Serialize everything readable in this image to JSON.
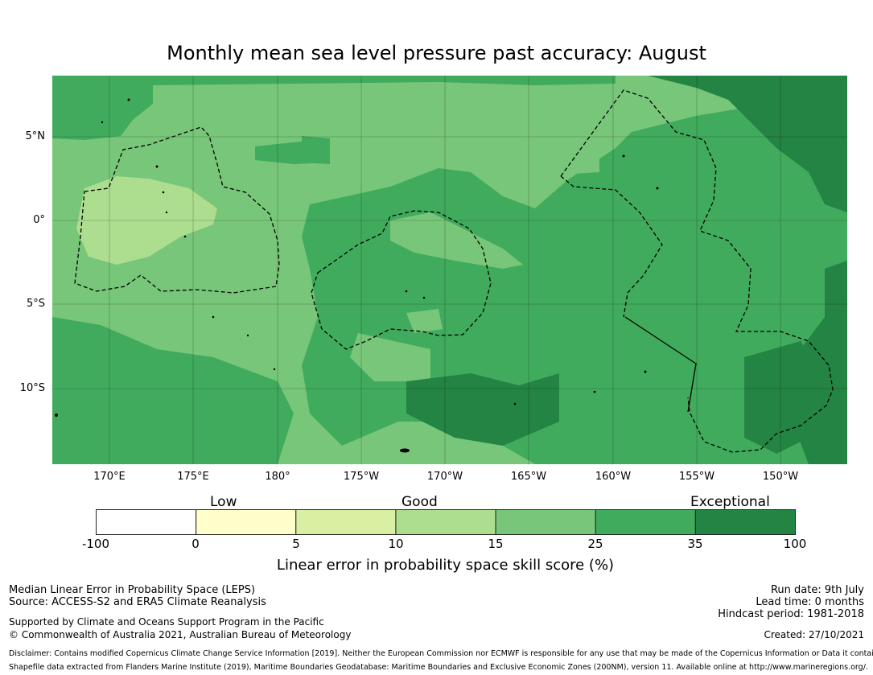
{
  "title": "Monthly mean sea level pressure past accuracy: August",
  "map": {
    "lat_labels": [
      "5°N",
      "0°",
      "5°S",
      "10°S"
    ],
    "lon_labels": [
      "170°E",
      "175°E",
      "180°",
      "175°W",
      "170°W",
      "165°W",
      "160°W",
      "155°W",
      "150°W"
    ]
  },
  "colorbar": {
    "category_labels": [
      "Low",
      "Good",
      "Exceptional"
    ],
    "tick_labels": [
      "-100",
      "0",
      "5",
      "10",
      "15",
      "25",
      "35",
      "100"
    ],
    "bin_colors": [
      "#ffffff",
      "#ffffcc",
      "#d9f0a3",
      "#addd8e",
      "#78c679",
      "#41ab5d",
      "#238443"
    ],
    "label": "Linear error in probability space skill score (%)"
  },
  "footer": {
    "line1": "Median Linear Error in Probability Space (LEPS)",
    "line2": "Source: ACCESS-S2 and ERA5 Climate Reanalysis",
    "line3": "Supported by Climate and Oceans Support Program in the Pacific",
    "line4": "© Commonwealth of Australia 2021, Australian Bureau of Meteorology",
    "run_date": "Run date: 9th July",
    "lead_time": "Lead time: 0 months",
    "hindcast": "Hindcast period: 1981-2018",
    "created": "Created: 27/10/2021",
    "disclaimer": "Disclaimer: Contains modified Copernicus Climate Change Service Information [2019]. Neither the European Commission nor ECMWF is responsible for any use that may be made of the Copernicus Information or Data it contains.",
    "shapefile": "Shapefile data extracted from Flanders Marine Institute (2019), Maritime Boundaries Geodatabase: Maritime Boundaries and Exclusive Economic Zones (200NM), version 11. Available online at http://www.marineregions.org/."
  }
}
